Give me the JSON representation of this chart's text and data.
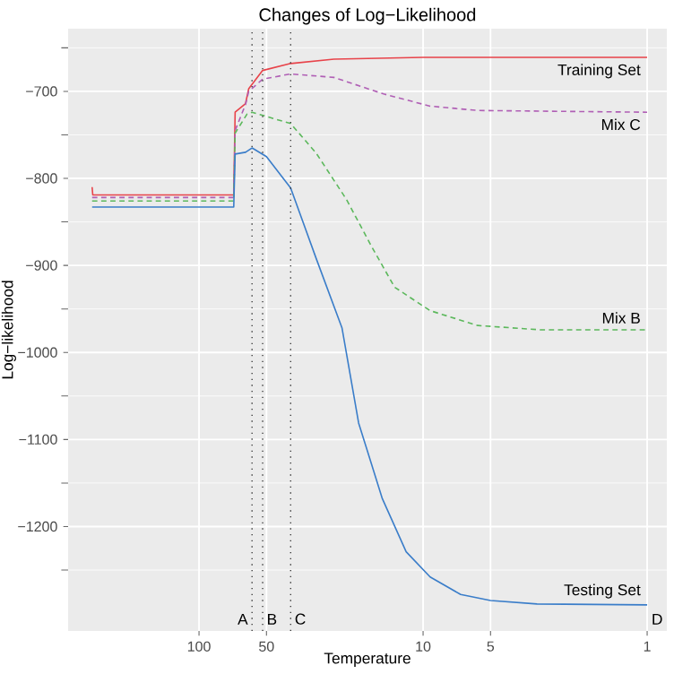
{
  "chart_data": {
    "type": "line",
    "title": "Changes of Log−Likelihood",
    "xlabel": "Temperature",
    "ylabel": "Log−likelihood",
    "log": "x",
    "xlim": [
      384,
      0.817
    ],
    "xticks": [
      100,
      50,
      10,
      5,
      1
    ],
    "ylim": [
      -1320,
      -628
    ],
    "yticks": [
      {
        "value": -700,
        "label": "−700"
      },
      {
        "value": -800,
        "label": "−800"
      },
      {
        "value": -900,
        "label": "−900"
      },
      {
        "value": -1000,
        "label": "−1000"
      },
      {
        "value": -1100,
        "label": "−1100"
      },
      {
        "value": -1200,
        "label": "−1200"
      }
    ],
    "grid": true,
    "marker": "none",
    "series": [
      {
        "name": "Training Set",
        "color": "#e8434a",
        "line_style": "solid",
        "x": [
          300,
          298,
          70,
          69,
          62,
          60,
          52,
          39,
          25,
          10,
          1
        ],
        "values": [
          -810,
          -819,
          -819,
          -724,
          -714,
          -697,
          -676,
          -668,
          -663,
          -661,
          -661
        ]
      },
      {
        "name": "Mix C",
        "color": "#b05fb5",
        "line_style": "dashed",
        "x": [
          300,
          70,
          69,
          62,
          60,
          52,
          39,
          25,
          15,
          9.3,
          5.7,
          1
        ],
        "values": [
          -822,
          -822,
          -745,
          -715,
          -700,
          -686,
          -680,
          -684,
          -703,
          -717,
          -722,
          -724
        ]
      },
      {
        "name": "Mix B",
        "color": "#5cb85c",
        "line_style": "dashed",
        "x": [
          300,
          70,
          69,
          61,
          58,
          39,
          30,
          22,
          17,
          13.4,
          9.3,
          5.7,
          3,
          1
        ],
        "values": [
          -826,
          -826,
          -748,
          -726,
          -724,
          -737,
          -771,
          -824,
          -878,
          -925,
          -952,
          -969,
          -974,
          -974
        ]
      },
      {
        "name": "Testing Set",
        "color": "#3a7dc9",
        "line_style": "solid",
        "x": [
          300,
          70,
          69,
          62,
          58,
          50,
          39,
          30,
          23,
          19.4,
          15.2,
          11.9,
          9.3,
          6.8,
          5,
          3.1,
          1
        ],
        "values": [
          -833,
          -833,
          -772,
          -770,
          -765,
          -775,
          -811,
          -892,
          -972,
          -1081,
          -1168,
          -1229,
          -1258,
          -1278,
          -1285,
          -1289,
          -1290
        ]
      }
    ],
    "ref_lines": [
      {
        "axis": "x",
        "value": 58,
        "label": "A",
        "color": "#333333",
        "line_style": "dotted"
      },
      {
        "axis": "x",
        "value": 52,
        "label": "B",
        "color": "#333333",
        "line_style": "dotted"
      },
      {
        "axis": "x",
        "value": 39,
        "label": "C",
        "color": "#333333",
        "line_style": "dotted"
      }
    ],
    "annotations": [
      "D"
    ]
  }
}
